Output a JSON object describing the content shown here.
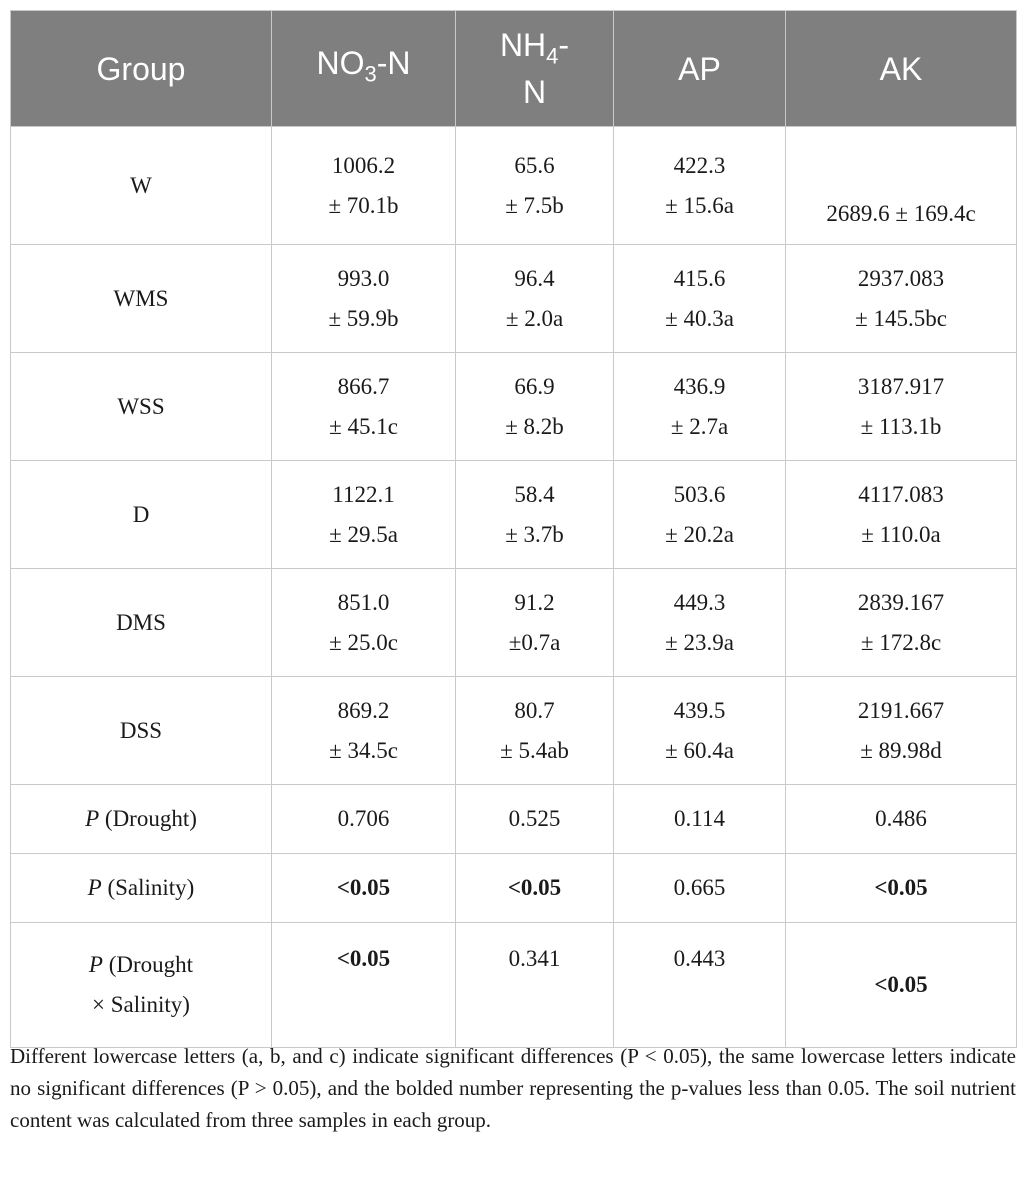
{
  "headers": {
    "group": "Group",
    "no3_pre": "NO",
    "no3_sub": "3",
    "no3_post": "-N",
    "nh4_pre": "NH",
    "nh4_sub": "4",
    "nh4_post": "-",
    "nh4_line2": "N",
    "ap": "AP",
    "ak": "AK"
  },
  "rows": [
    {
      "group": "W",
      "no3": [
        "1006.2",
        "± 70.1b"
      ],
      "nh4": [
        "65.6",
        "± 7.5b"
      ],
      "ap": [
        "422.3",
        "± 15.6a"
      ],
      "ak": [
        "",
        "2689.6 ± 169.4c"
      ]
    },
    {
      "group": "WMS",
      "no3": [
        "993.0",
        "± 59.9b"
      ],
      "nh4": [
        "96.4",
        "± 2.0a"
      ],
      "ap": [
        "415.6",
        "± 40.3a"
      ],
      "ak": [
        "2937.083",
        "± 145.5bc"
      ]
    },
    {
      "group": "WSS",
      "no3": [
        "866.7",
        "± 45.1c"
      ],
      "nh4": [
        "66.9",
        "± 8.2b"
      ],
      "ap": [
        "436.9",
        "± 2.7a"
      ],
      "ak": [
        "3187.917",
        "± 113.1b"
      ]
    },
    {
      "group": "D",
      "no3": [
        "1122.1",
        "± 29.5a"
      ],
      "nh4": [
        "58.4",
        "± 3.7b"
      ],
      "ap": [
        "503.6",
        "± 20.2a"
      ],
      "ak": [
        "4117.083",
        "± 110.0a"
      ]
    },
    {
      "group": "DMS",
      "no3": [
        "851.0",
        "± 25.0c"
      ],
      "nh4": [
        "91.2",
        "±0.7a"
      ],
      "ap": [
        "449.3",
        "± 23.9a"
      ],
      "ak": [
        "2839.167",
        "± 172.8c"
      ]
    },
    {
      "group": "DSS",
      "no3": [
        "869.2",
        "± 34.5c"
      ],
      "nh4": [
        "80.7",
        "± 5.4ab"
      ],
      "ap": [
        "439.5",
        "± 60.4a"
      ],
      "ak": [
        "2191.667",
        "± 89.98d"
      ]
    }
  ],
  "p_rows": [
    {
      "p": "P",
      "label": " (Drought)",
      "no3": "0.706",
      "nh4": "0.525",
      "ap": "0.114",
      "ak": "0.486"
    },
    {
      "p": "P",
      "label": " (Salinity)",
      "no3": "<0.05",
      "nh4": "<0.05",
      "ap": "0.665",
      "ak": "<0.05"
    },
    {
      "p": "P",
      "label": " (Drought",
      "label2": "× Salinity)",
      "no3": "<0.05",
      "nh4": "0.341",
      "ap": "0.443",
      "ak": "<0.05"
    }
  ],
  "footnote": "Different lowercase letters (a, b, and c) indicate significant differences (P < 0.05), the same lowercase letters indicate no significant differences (P > 0.05), and the bolded number representing the p-values less than 0.05. The soil nutrient content was calculated from three samples in each group."
}
